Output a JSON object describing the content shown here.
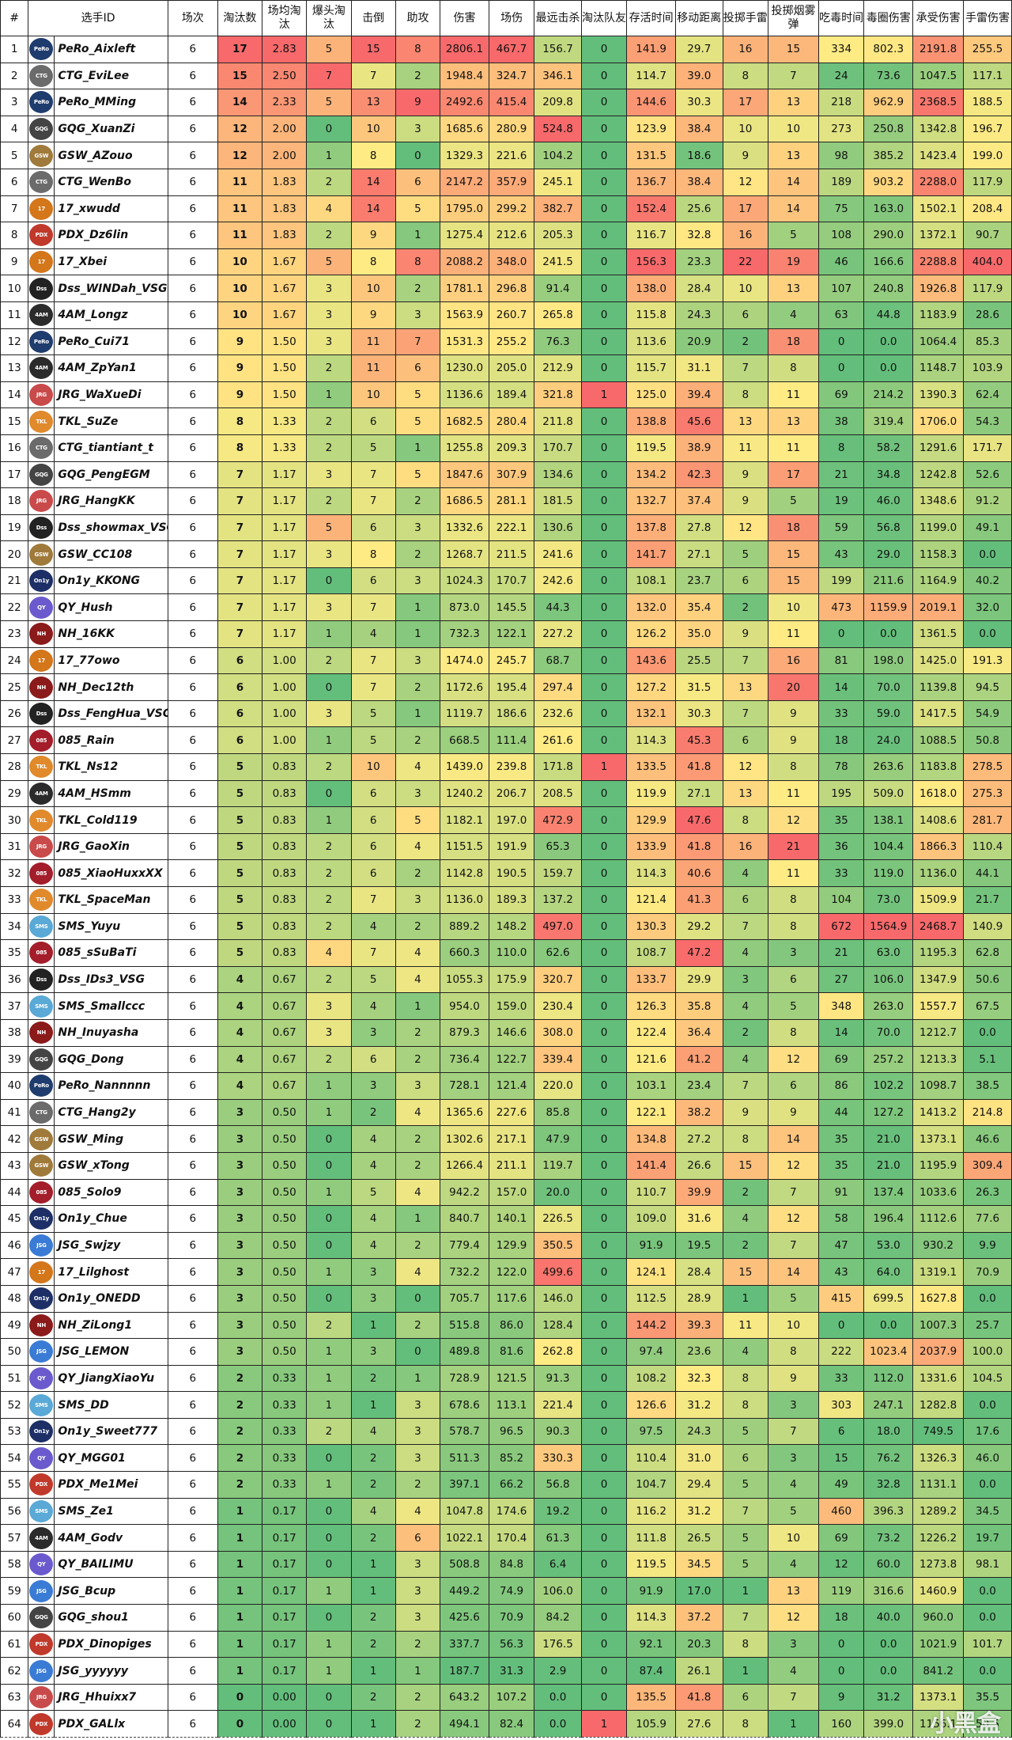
{
  "header": [
    "#",
    "选手ID",
    "场次",
    "淘汰数",
    "场均淘汰",
    "爆头淘汰",
    "击倒",
    "助攻",
    "伤害",
    "场伤",
    "最远击杀",
    "淘汰队友",
    "存活时间",
    "移动距离",
    "投掷手雷",
    "投掷烟雾弹",
    "吃毒时间",
    "毒圈伤害",
    "承受伤害",
    "手雷伤害"
  ],
  "rows": [
    [
      "1",
      "PeRo_Aixleft",
      "6",
      "17",
      "2.83",
      "5",
      "15",
      "8",
      "2806.1",
      "467.7",
      "156.7",
      "0",
      "141.9",
      "29.7",
      "16",
      "15",
      "334",
      "802.3",
      "2191.8",
      "255.5"
    ],
    [
      "2",
      "CTG_EviLee",
      "6",
      "15",
      "2.50",
      "7",
      "7",
      "2",
      "1948.4",
      "324.7",
      "346.1",
      "0",
      "114.7",
      "39.0",
      "8",
      "7",
      "24",
      "73.6",
      "1047.5",
      "117.1"
    ],
    [
      "3",
      "PeRo_MMing",
      "6",
      "14",
      "2.33",
      "5",
      "13",
      "9",
      "2492.6",
      "415.4",
      "209.8",
      "0",
      "144.6",
      "30.3",
      "17",
      "13",
      "218",
      "962.9",
      "2368.5",
      "188.5"
    ],
    [
      "4",
      "GQG_XuanZi",
      "6",
      "12",
      "2.00",
      "0",
      "10",
      "3",
      "1685.6",
      "280.9",
      "524.8",
      "0",
      "123.9",
      "38.4",
      "10",
      "10",
      "273",
      "250.8",
      "1342.8",
      "196.7"
    ],
    [
      "5",
      "GSW_AZouo",
      "6",
      "12",
      "2.00",
      "1",
      "8",
      "0",
      "1329.3",
      "221.6",
      "104.2",
      "0",
      "131.5",
      "18.6",
      "9",
      "13",
      "98",
      "385.2",
      "1423.4",
      "199.0"
    ],
    [
      "6",
      "CTG_WenBo",
      "6",
      "11",
      "1.83",
      "2",
      "14",
      "6",
      "2147.2",
      "357.9",
      "245.1",
      "0",
      "136.7",
      "38.4",
      "12",
      "14",
      "189",
      "903.2",
      "2288.0",
      "117.9"
    ],
    [
      "7",
      "17_xwudd",
      "6",
      "11",
      "1.83",
      "4",
      "14",
      "5",
      "1795.0",
      "299.2",
      "382.7",
      "0",
      "152.4",
      "25.6",
      "17",
      "14",
      "75",
      "163.0",
      "1502.1",
      "208.4"
    ],
    [
      "8",
      "PDX_Dz6lin",
      "6",
      "11",
      "1.83",
      "2",
      "9",
      "1",
      "1275.4",
      "212.6",
      "205.3",
      "0",
      "116.7",
      "32.8",
      "16",
      "5",
      "108",
      "290.0",
      "1372.1",
      "90.7"
    ],
    [
      "9",
      "17_Xbei",
      "6",
      "10",
      "1.67",
      "5",
      "8",
      "8",
      "2088.2",
      "348.0",
      "241.5",
      "0",
      "156.3",
      "23.3",
      "22",
      "19",
      "46",
      "166.6",
      "2288.8",
      "404.0"
    ],
    [
      "10",
      "Dss_WINDah_VSG",
      "6",
      "10",
      "1.67",
      "3",
      "10",
      "2",
      "1781.1",
      "296.8",
      "91.4",
      "0",
      "138.0",
      "28.4",
      "10",
      "13",
      "107",
      "240.8",
      "1926.8",
      "117.9"
    ],
    [
      "11",
      "4AM_Longz",
      "6",
      "10",
      "1.67",
      "3",
      "9",
      "3",
      "1563.9",
      "260.7",
      "265.8",
      "0",
      "115.8",
      "24.3",
      "6",
      "4",
      "63",
      "44.8",
      "1183.9",
      "28.6"
    ],
    [
      "12",
      "PeRo_Cui71",
      "6",
      "9",
      "1.50",
      "3",
      "11",
      "7",
      "1531.3",
      "255.2",
      "76.3",
      "0",
      "113.6",
      "20.9",
      "2",
      "18",
      "0",
      "0.0",
      "1064.4",
      "85.3"
    ],
    [
      "13",
      "4AM_ZpYan1",
      "6",
      "9",
      "1.50",
      "2",
      "11",
      "6",
      "1230.0",
      "205.0",
      "212.9",
      "0",
      "115.7",
      "31.1",
      "7",
      "8",
      "0",
      "0.0",
      "1148.7",
      "103.9"
    ],
    [
      "14",
      "JRG_WaXueDi",
      "6",
      "9",
      "1.50",
      "1",
      "10",
      "5",
      "1136.6",
      "189.4",
      "321.8",
      "1",
      "125.0",
      "39.4",
      "8",
      "11",
      "69",
      "214.2",
      "1390.3",
      "62.4"
    ],
    [
      "15",
      "TKL_SuZe",
      "6",
      "8",
      "1.33",
      "2",
      "6",
      "5",
      "1682.5",
      "280.4",
      "211.8",
      "0",
      "138.8",
      "45.6",
      "13",
      "13",
      "38",
      "319.4",
      "1706.0",
      "54.3"
    ],
    [
      "16",
      "CTG_tiantiant_t",
      "6",
      "8",
      "1.33",
      "2",
      "5",
      "1",
      "1255.8",
      "209.3",
      "170.7",
      "0",
      "119.5",
      "38.9",
      "11",
      "11",
      "8",
      "58.2",
      "1291.6",
      "171.7"
    ],
    [
      "17",
      "GQG_PengEGM",
      "6",
      "7",
      "1.17",
      "3",
      "7",
      "5",
      "1847.6",
      "307.9",
      "134.6",
      "0",
      "134.2",
      "42.3",
      "9",
      "17",
      "21",
      "34.8",
      "1242.8",
      "52.6"
    ],
    [
      "18",
      "JRG_HangKK",
      "6",
      "7",
      "1.17",
      "2",
      "7",
      "2",
      "1686.5",
      "281.1",
      "181.5",
      "0",
      "132.7",
      "37.4",
      "9",
      "5",
      "19",
      "46.0",
      "1348.6",
      "91.2"
    ],
    [
      "19",
      "Dss_showmax_VSG",
      "6",
      "7",
      "1.17",
      "5",
      "6",
      "3",
      "1332.6",
      "222.1",
      "130.6",
      "0",
      "137.8",
      "27.8",
      "12",
      "18",
      "59",
      "56.8",
      "1199.0",
      "49.1"
    ],
    [
      "20",
      "GSW_CC108",
      "6",
      "7",
      "1.17",
      "3",
      "8",
      "2",
      "1268.7",
      "211.5",
      "241.6",
      "0",
      "141.7",
      "27.1",
      "5",
      "15",
      "43",
      "29.0",
      "1158.3",
      "0.0"
    ],
    [
      "21",
      "On1y_KKONG",
      "6",
      "7",
      "1.17",
      "0",
      "6",
      "3",
      "1024.3",
      "170.7",
      "242.6",
      "0",
      "108.1",
      "23.7",
      "6",
      "15",
      "199",
      "211.6",
      "1164.9",
      "40.2"
    ],
    [
      "22",
      "QY_Hush",
      "6",
      "7",
      "1.17",
      "3",
      "7",
      "1",
      "873.0",
      "145.5",
      "44.3",
      "0",
      "132.0",
      "35.4",
      "2",
      "10",
      "473",
      "1159.9",
      "2019.1",
      "32.0"
    ],
    [
      "23",
      "NH_16KK",
      "6",
      "7",
      "1.17",
      "1",
      "4",
      "1",
      "732.3",
      "122.1",
      "227.2",
      "0",
      "126.2",
      "35.0",
      "9",
      "11",
      "0",
      "0.0",
      "1361.5",
      "0.0"
    ],
    [
      "24",
      "17_77owo",
      "6",
      "6",
      "1.00",
      "2",
      "7",
      "3",
      "1474.0",
      "245.7",
      "68.7",
      "0",
      "143.6",
      "25.5",
      "7",
      "16",
      "81",
      "198.0",
      "1425.0",
      "191.3"
    ],
    [
      "25",
      "NH_Dec12th",
      "6",
      "6",
      "1.00",
      "0",
      "7",
      "2",
      "1172.6",
      "195.4",
      "297.4",
      "0",
      "127.2",
      "31.5",
      "13",
      "20",
      "14",
      "70.0",
      "1139.8",
      "94.5"
    ],
    [
      "26",
      "Dss_FengHua_VSG",
      "6",
      "6",
      "1.00",
      "3",
      "5",
      "1",
      "1119.7",
      "186.6",
      "232.6",
      "0",
      "132.1",
      "30.3",
      "7",
      "9",
      "33",
      "59.0",
      "1417.5",
      "54.9"
    ],
    [
      "27",
      "085_Rain",
      "6",
      "6",
      "1.00",
      "1",
      "5",
      "2",
      "668.5",
      "111.4",
      "261.6",
      "0",
      "114.3",
      "45.3",
      "6",
      "9",
      "18",
      "24.0",
      "1088.5",
      "50.8"
    ],
    [
      "28",
      "TKL_Ns12",
      "6",
      "5",
      "0.83",
      "2",
      "10",
      "4",
      "1439.0",
      "239.8",
      "171.8",
      "1",
      "133.5",
      "41.8",
      "12",
      "8",
      "78",
      "263.6",
      "1183.8",
      "278.5"
    ],
    [
      "29",
      "4AM_HSmm",
      "6",
      "5",
      "0.83",
      "0",
      "6",
      "3",
      "1240.2",
      "206.7",
      "208.5",
      "0",
      "119.9",
      "27.1",
      "13",
      "11",
      "195",
      "509.0",
      "1618.0",
      "275.3"
    ],
    [
      "30",
      "TKL_Cold119",
      "6",
      "5",
      "0.83",
      "1",
      "6",
      "5",
      "1182.1",
      "197.0",
      "472.9",
      "0",
      "129.9",
      "47.6",
      "8",
      "12",
      "35",
      "138.1",
      "1408.6",
      "281.7"
    ],
    [
      "31",
      "JRG_GaoXin",
      "6",
      "5",
      "0.83",
      "2",
      "6",
      "4",
      "1151.5",
      "191.9",
      "65.3",
      "0",
      "133.9",
      "41.8",
      "16",
      "21",
      "36",
      "104.4",
      "1866.3",
      "110.4"
    ],
    [
      "32",
      "085_XiaoHuxxXX",
      "6",
      "5",
      "0.83",
      "2",
      "6",
      "2",
      "1142.8",
      "190.5",
      "159.7",
      "0",
      "114.3",
      "40.6",
      "4",
      "11",
      "33",
      "119.0",
      "1136.0",
      "44.1"
    ],
    [
      "33",
      "TKL_SpaceMan",
      "6",
      "5",
      "0.83",
      "2",
      "7",
      "3",
      "1136.0",
      "189.3",
      "137.2",
      "0",
      "121.4",
      "41.3",
      "6",
      "8",
      "104",
      "73.0",
      "1509.9",
      "21.7"
    ],
    [
      "34",
      "SMS_Yuyu",
      "6",
      "5",
      "0.83",
      "2",
      "4",
      "2",
      "889.2",
      "148.2",
      "497.0",
      "0",
      "130.3",
      "29.2",
      "7",
      "8",
      "672",
      "1564.9",
      "2468.7",
      "140.9"
    ],
    [
      "35",
      "085_sSuBaTi",
      "6",
      "5",
      "0.83",
      "4",
      "7",
      "4",
      "660.3",
      "110.0",
      "62.6",
      "0",
      "108.7",
      "47.2",
      "4",
      "3",
      "21",
      "63.0",
      "1195.3",
      "62.8"
    ],
    [
      "36",
      "Dss_IDs3_VSG",
      "6",
      "4",
      "0.67",
      "2",
      "5",
      "4",
      "1055.3",
      "175.9",
      "320.7",
      "0",
      "133.7",
      "29.9",
      "3",
      "6",
      "27",
      "106.0",
      "1347.9",
      "50.6"
    ],
    [
      "37",
      "SMS_Smallccc",
      "6",
      "4",
      "0.67",
      "3",
      "4",
      "1",
      "954.0",
      "159.0",
      "230.4",
      "0",
      "126.3",
      "35.8",
      "4",
      "5",
      "348",
      "263.0",
      "1557.7",
      "67.5"
    ],
    [
      "38",
      "NH_Inuyasha",
      "6",
      "4",
      "0.67",
      "3",
      "3",
      "2",
      "879.3",
      "146.6",
      "308.0",
      "0",
      "122.4",
      "36.4",
      "2",
      "8",
      "14",
      "70.0",
      "1212.7",
      "0.0"
    ],
    [
      "39",
      "GQG_Dong",
      "6",
      "4",
      "0.67",
      "2",
      "6",
      "2",
      "736.4",
      "122.7",
      "339.4",
      "0",
      "121.6",
      "41.2",
      "4",
      "12",
      "69",
      "257.2",
      "1213.3",
      "5.1"
    ],
    [
      "40",
      "PeRo_Nannnnn",
      "6",
      "4",
      "0.67",
      "1",
      "3",
      "3",
      "728.1",
      "121.4",
      "220.0",
      "0",
      "103.1",
      "23.4",
      "7",
      "6",
      "86",
      "102.2",
      "1098.7",
      "38.5"
    ],
    [
      "41",
      "CTG_Hang2y",
      "6",
      "3",
      "0.50",
      "1",
      "2",
      "4",
      "1365.6",
      "227.6",
      "85.8",
      "0",
      "122.1",
      "38.2",
      "9",
      "9",
      "44",
      "127.2",
      "1413.2",
      "214.8"
    ],
    [
      "42",
      "GSW_Ming",
      "6",
      "3",
      "0.50",
      "0",
      "4",
      "2",
      "1302.6",
      "217.1",
      "47.9",
      "0",
      "134.8",
      "27.2",
      "8",
      "14",
      "35",
      "21.0",
      "1373.1",
      "46.6"
    ],
    [
      "43",
      "GSW_xTong",
      "6",
      "3",
      "0.50",
      "0",
      "4",
      "2",
      "1266.4",
      "211.1",
      "119.7",
      "0",
      "141.4",
      "26.6",
      "15",
      "12",
      "35",
      "21.0",
      "1195.9",
      "309.4"
    ],
    [
      "44",
      "085_Solo9",
      "6",
      "3",
      "0.50",
      "1",
      "5",
      "4",
      "942.2",
      "157.0",
      "20.0",
      "0",
      "110.7",
      "39.9",
      "2",
      "7",
      "91",
      "137.4",
      "1033.6",
      "26.3"
    ],
    [
      "45",
      "On1y_Chue",
      "6",
      "3",
      "0.50",
      "0",
      "4",
      "1",
      "840.7",
      "140.1",
      "226.5",
      "0",
      "109.0",
      "31.6",
      "4",
      "12",
      "58",
      "196.4",
      "1112.6",
      "77.6"
    ],
    [
      "46",
      "JSG_Swjzy",
      "6",
      "3",
      "0.50",
      "0",
      "4",
      "2",
      "779.4",
      "129.9",
      "350.5",
      "0",
      "91.9",
      "19.5",
      "2",
      "7",
      "47",
      "53.0",
      "930.2",
      "9.9"
    ],
    [
      "47",
      "17_Lilghost",
      "6",
      "3",
      "0.50",
      "1",
      "3",
      "4",
      "732.2",
      "122.0",
      "499.6",
      "0",
      "124.1",
      "28.4",
      "15",
      "14",
      "43",
      "64.0",
      "1319.1",
      "70.9"
    ],
    [
      "48",
      "On1y_ONEDD",
      "6",
      "3",
      "0.50",
      "0",
      "3",
      "0",
      "705.7",
      "117.6",
      "146.0",
      "0",
      "112.5",
      "28.9",
      "1",
      "5",
      "415",
      "699.5",
      "1627.8",
      "0.0"
    ],
    [
      "49",
      "NH_ZiLong1",
      "6",
      "3",
      "0.50",
      "2",
      "1",
      "2",
      "515.8",
      "86.0",
      "128.4",
      "0",
      "144.2",
      "39.3",
      "11",
      "10",
      "0",
      "0.0",
      "1007.3",
      "25.7"
    ],
    [
      "50",
      "JSG_LEMON",
      "6",
      "3",
      "0.50",
      "1",
      "3",
      "0",
      "489.8",
      "81.6",
      "262.8",
      "0",
      "97.4",
      "23.6",
      "4",
      "8",
      "222",
      "1023.4",
      "2037.9",
      "100.0"
    ],
    [
      "51",
      "QY_JiangXiaoYu",
      "6",
      "2",
      "0.33",
      "1",
      "2",
      "1",
      "728.9",
      "121.5",
      "91.3",
      "0",
      "108.2",
      "32.3",
      "8",
      "9",
      "33",
      "112.0",
      "1331.6",
      "104.5"
    ],
    [
      "52",
      "SMS_DD",
      "6",
      "2",
      "0.33",
      "1",
      "1",
      "3",
      "678.6",
      "113.1",
      "221.4",
      "0",
      "126.6",
      "31.2",
      "8",
      "3",
      "303",
      "247.1",
      "1282.8",
      "0.0"
    ],
    [
      "53",
      "On1y_Sweet777",
      "6",
      "2",
      "0.33",
      "2",
      "4",
      "3",
      "578.7",
      "96.5",
      "90.3",
      "0",
      "97.5",
      "24.3",
      "5",
      "7",
      "6",
      "18.0",
      "749.5",
      "17.6"
    ],
    [
      "54",
      "QY_MGG01",
      "6",
      "2",
      "0.33",
      "0",
      "2",
      "3",
      "511.3",
      "85.2",
      "330.3",
      "0",
      "110.4",
      "31.0",
      "6",
      "3",
      "15",
      "76.2",
      "1326.3",
      "46.0"
    ],
    [
      "55",
      "PDX_Me1Mei",
      "6",
      "2",
      "0.33",
      "1",
      "2",
      "2",
      "397.1",
      "66.2",
      "56.8",
      "0",
      "104.7",
      "29.4",
      "5",
      "4",
      "49",
      "32.8",
      "1131.1",
      "0.0"
    ],
    [
      "56",
      "SMS_Ze1",
      "6",
      "1",
      "0.17",
      "0",
      "4",
      "4",
      "1047.8",
      "174.6",
      "19.2",
      "0",
      "116.2",
      "31.2",
      "7",
      "5",
      "460",
      "396.3",
      "1289.2",
      "34.5"
    ],
    [
      "57",
      "4AM_Godv",
      "6",
      "1",
      "0.17",
      "0",
      "2",
      "6",
      "1022.1",
      "170.4",
      "61.3",
      "0",
      "111.8",
      "26.5",
      "5",
      "10",
      "69",
      "73.2",
      "1226.2",
      "19.7"
    ],
    [
      "58",
      "QY_BAILIMU",
      "6",
      "1",
      "0.17",
      "0",
      "1",
      "3",
      "508.8",
      "84.8",
      "6.4",
      "0",
      "119.5",
      "34.5",
      "5",
      "4",
      "12",
      "60.0",
      "1273.8",
      "98.1"
    ],
    [
      "59",
      "JSG_Bcup",
      "6",
      "1",
      "0.17",
      "1",
      "1",
      "3",
      "449.2",
      "74.9",
      "106.0",
      "0",
      "91.9",
      "17.0",
      "1",
      "13",
      "119",
      "316.6",
      "1460.9",
      "0.0"
    ],
    [
      "60",
      "GQG_shou1",
      "6",
      "1",
      "0.17",
      "0",
      "2",
      "3",
      "425.6",
      "70.9",
      "84.2",
      "0",
      "114.3",
      "37.2",
      "7",
      "12",
      "18",
      "40.0",
      "960.0",
      "0.0"
    ],
    [
      "61",
      "PDX_Dinopiges",
      "6",
      "1",
      "0.17",
      "1",
      "2",
      "2",
      "337.7",
      "56.3",
      "176.5",
      "0",
      "92.1",
      "20.3",
      "8",
      "3",
      "0",
      "0.0",
      "1021.9",
      "101.7"
    ],
    [
      "62",
      "JSG_yyyyyy",
      "6",
      "1",
      "0.17",
      "1",
      "1",
      "1",
      "187.7",
      "31.3",
      "2.9",
      "0",
      "87.4",
      "26.1",
      "1",
      "4",
      "0",
      "0.0",
      "841.2",
      "0.0"
    ],
    [
      "63",
      "JRG_Hhuixx7",
      "6",
      "0",
      "0.00",
      "0",
      "2",
      "2",
      "643.2",
      "107.2",
      "0.0",
      "0",
      "135.5",
      "41.8",
      "6",
      "7",
      "9",
      "31.2",
      "1373.1",
      "35.5"
    ],
    [
      "64",
      "PDX_GALlx",
      "6",
      "0",
      "0.00",
      "0",
      "1",
      "2",
      "494.1",
      "82.4",
      "0.0",
      "1",
      "105.9",
      "27.6",
      "8",
      "1",
      "160",
      "399.0",
      "1156.1",
      "50.5"
    ]
  ],
  "team_logos": {
    "PeRo": {
      "abbr": "PeRo",
      "color": "#1f3c6e"
    },
    "CTG": {
      "abbr": "CTG",
      "color": "#6b6b6b"
    },
    "GQG": {
      "abbr": "GQG",
      "color": "#444444"
    },
    "GSW": {
      "abbr": "GSW",
      "color": "#a07a3a"
    },
    "17": {
      "abbr": "17",
      "color": "#d4761a"
    },
    "PDX": {
      "abbr": "PDX",
      "color": "#c0392b"
    },
    "Dss": {
      "abbr": "Dss",
      "color": "#222222"
    },
    "4AM": {
      "abbr": "4AM",
      "color": "#2b2b2b"
    },
    "JRG": {
      "abbr": "JRG",
      "color": "#c94a4a"
    },
    "TKL": {
      "abbr": "TKL",
      "color": "#e08a2c"
    },
    "On1y": {
      "abbr": "On1y",
      "color": "#1d2f66"
    },
    "QY": {
      "abbr": "QY",
      "color": "#6a5acd"
    },
    "NH": {
      "abbr": "NH",
      "color": "#8b1a1a"
    },
    "085": {
      "abbr": "085",
      "color": "#a31d2a"
    },
    "SMS": {
      "abbr": "SMS",
      "color": "#5aa9d6"
    },
    "JSG": {
      "abbr": "JSG",
      "color": "#3a7bd5"
    }
  },
  "watermark": "小黑盒"
}
